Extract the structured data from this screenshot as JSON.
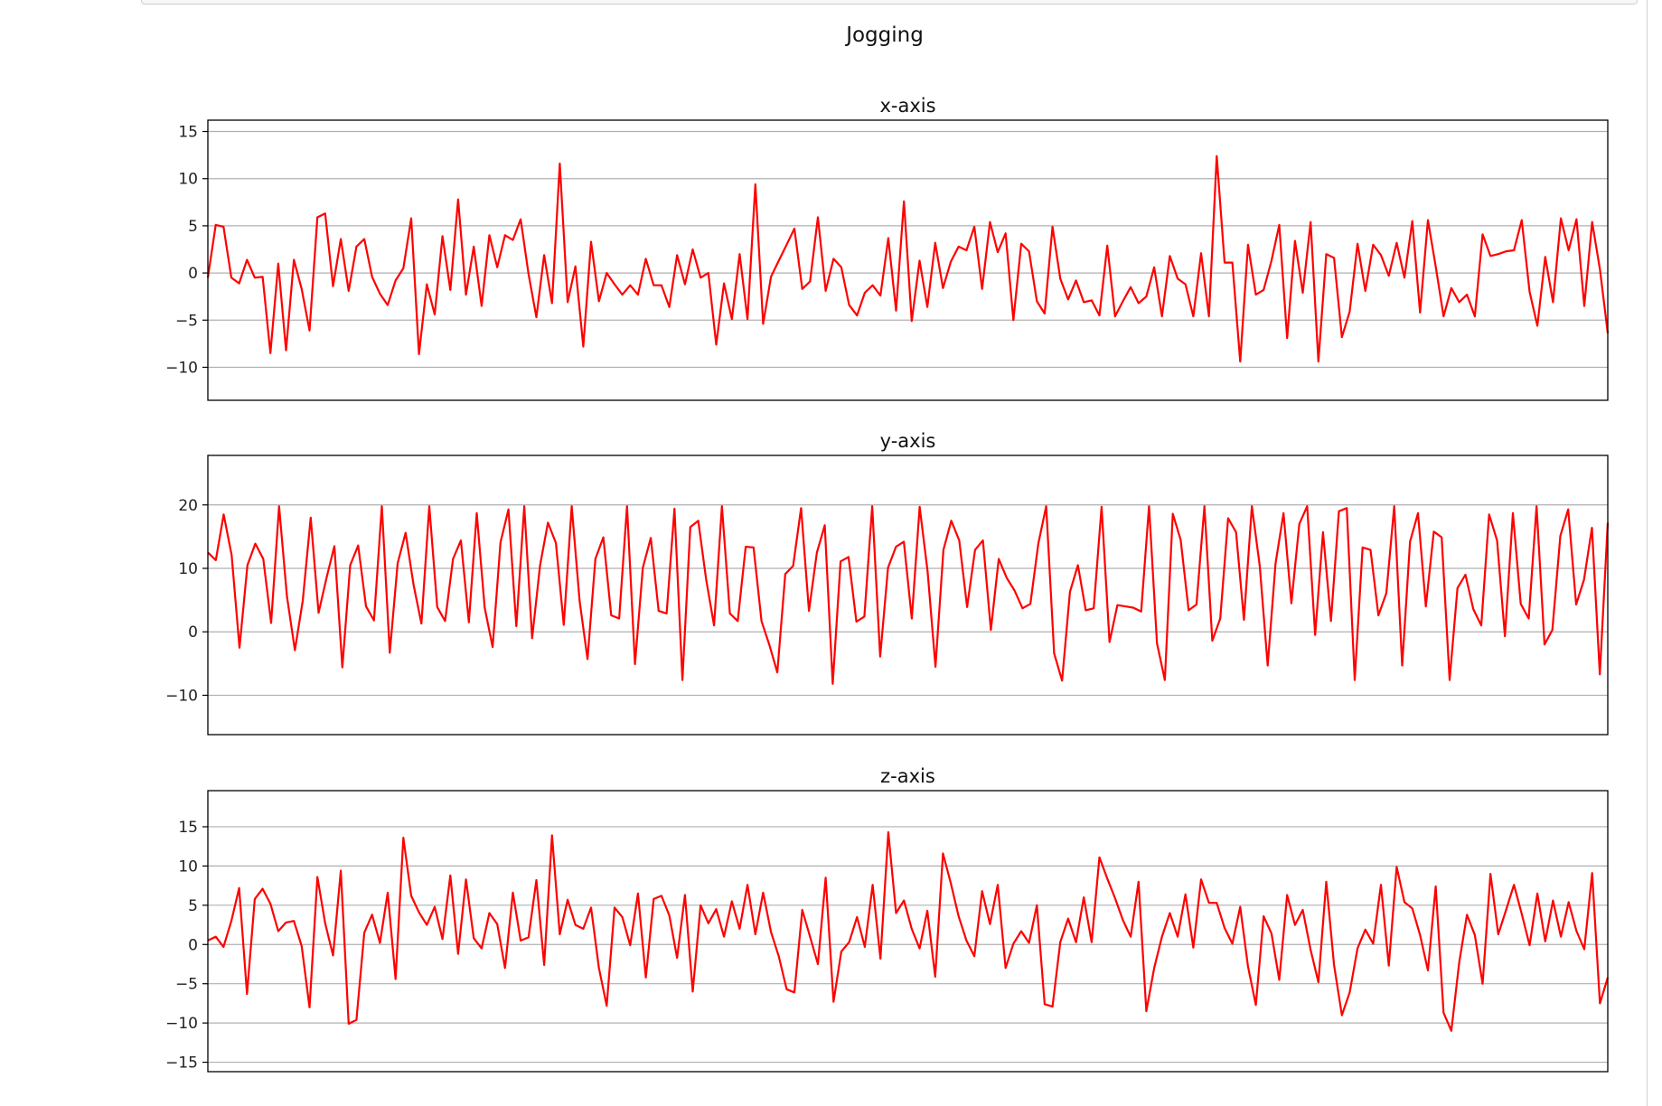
{
  "figure": {
    "title": "Jogging",
    "line_color": "#ff0000",
    "grid_color": "#b0b0b0"
  },
  "chart_data": [
    {
      "type": "line",
      "title": "x-axis",
      "ylim": [
        -13.5,
        16.2
      ],
      "yticks": [
        -10,
        -5,
        0,
        5,
        10,
        15
      ],
      "grid": "y",
      "color": "#ff0000",
      "values": [
        -0.5,
        5.1,
        4.9,
        -0.5,
        -1.1,
        1.4,
        -0.5,
        -0.4,
        -8.5,
        1.0,
        -8.2,
        1.4,
        -1.7,
        -6.1,
        5.9,
        6.3,
        -1.4,
        3.6,
        -1.9,
        2.8,
        3.6,
        -0.4,
        -2.2,
        -3.4,
        -0.8,
        0.5,
        5.8,
        -8.6,
        -1.2,
        -4.4,
        3.9,
        -1.8,
        7.8,
        -2.3,
        2.8,
        -3.5,
        4.0,
        0.6,
        4.0,
        3.5,
        5.7,
        -0.1,
        -4.7,
        1.9,
        -3.2,
        11.6,
        -3.1,
        0.7,
        -7.8,
        3.3,
        -3.0,
        0.0,
        -1.2,
        -2.3,
        -1.3,
        -2.3,
        1.5,
        -1.3,
        -1.3,
        -3.6,
        1.9,
        -1.2,
        2.5,
        -0.5,
        0.0,
        -7.6,
        -1.1,
        -4.9,
        2.0,
        -4.9,
        9.4,
        -5.4,
        -0.4,
        1.3,
        3.0,
        4.7,
        -1.7,
        -0.9,
        5.9,
        -1.9,
        1.5,
        0.6,
        -3.4,
        -4.5,
        -2.1,
        -1.3,
        -2.4,
        3.7,
        -4.0,
        7.6,
        -5.1,
        1.3,
        -3.6,
        3.2,
        -1.6,
        1.2,
        2.8,
        2.4,
        4.9,
        -1.7,
        5.4,
        2.2,
        4.2,
        -5.0,
        3.1,
        2.3,
        -3.0,
        -4.3,
        4.9,
        -0.6,
        -2.8,
        -0.8,
        -3.1,
        -2.9,
        -4.5,
        2.9,
        -4.6,
        -3.0,
        -1.5,
        -3.2,
        -2.5,
        0.6,
        -4.6,
        1.8,
        -0.6,
        -1.2,
        -4.6,
        2.1,
        -4.6,
        12.4,
        1.1,
        1.1,
        -9.4,
        3.0,
        -2.3,
        -1.8,
        1.3,
        5.1,
        -6.9,
        3.4,
        -2.1,
        5.4,
        -9.4,
        2.0,
        1.6,
        -6.8,
        -4.1,
        3.1,
        -1.9,
        3.0,
        1.9,
        -0.3,
        3.2,
        -0.5,
        5.5,
        -4.2,
        5.6,
        0.7,
        -4.6,
        -1.6,
        -3.1,
        -2.3,
        -4.6,
        4.1,
        1.8,
        2.0,
        2.3,
        2.4,
        5.6,
        -2.0,
        -5.6,
        1.7,
        -3.1,
        5.8,
        2.4,
        5.7,
        -3.5,
        5.4,
        0.4,
        -6.4
      ]
    },
    {
      "type": "line",
      "title": "y-axis",
      "ylim": [
        -16.2,
        27.8
      ],
      "yticks": [
        -10,
        0,
        10,
        20
      ],
      "grid": "y",
      "color": "#ff0000",
      "values": [
        12.5,
        11.3,
        18.5,
        12.1,
        -2.5,
        10.5,
        13.9,
        11.5,
        1.4,
        19.8,
        5.6,
        -2.9,
        4.9,
        18.0,
        3.0,
        8.5,
        13.5,
        -5.6,
        10.5,
        13.6,
        4.0,
        1.8,
        19.8,
        -3.3,
        10.8,
        15.6,
        7.5,
        1.3,
        19.8,
        3.9,
        1.7,
        11.5,
        14.4,
        1.5,
        18.7,
        3.8,
        -2.4,
        14.1,
        19.3,
        0.9,
        19.8,
        -1.0,
        10.5,
        17.2,
        14.0,
        1.1,
        19.8,
        4.9,
        -4.3,
        11.5,
        14.9,
        2.6,
        2.1,
        19.8,
        -5.1,
        10.1,
        14.8,
        3.3,
        2.9,
        19.4,
        -7.6,
        16.5,
        17.5,
        8.3,
        1.0,
        19.8,
        2.9,
        1.7,
        13.4,
        13.3,
        1.7,
        -2.1,
        -6.4,
        9.1,
        10.4,
        19.5,
        3.3,
        12.5,
        16.8,
        -8.2,
        11.1,
        11.8,
        1.6,
        2.4,
        19.8,
        -3.9,
        10.1,
        13.4,
        14.2,
        2.1,
        19.7,
        9.5,
        -5.5,
        12.9,
        17.5,
        14.4,
        3.9,
        12.9,
        14.4,
        0.3,
        11.5,
        8.5,
        6.5,
        3.7,
        4.4,
        13.9,
        19.8,
        -3.4,
        -7.7,
        6.3,
        10.5,
        3.4,
        3.7,
        19.7,
        -1.6,
        4.2,
        4.0,
        3.8,
        3.2,
        19.8,
        -1.8,
        -7.6,
        18.6,
        14.5,
        3.4,
        4.3,
        19.8,
        -1.4,
        2.1,
        17.9,
        15.7,
        1.9,
        19.8,
        10.4,
        -5.3,
        10.8,
        18.7,
        4.5,
        17.0,
        19.8,
        -0.5,
        15.7,
        1.7,
        19.0,
        19.5,
        -7.6,
        13.3,
        12.9,
        2.6,
        6.1,
        19.8,
        -5.3,
        14.2,
        18.7,
        4.0,
        15.8,
        14.9,
        -7.6,
        6.9,
        9.0,
        3.6,
        1.0,
        18.5,
        14.4,
        -0.7,
        18.7,
        4.4,
        2.1,
        19.8,
        -2.0,
        0.3,
        15.1,
        19.3,
        4.3,
        8.2,
        16.4,
        -6.7,
        17.2
      ]
    },
    {
      "type": "line",
      "title": "z-axis",
      "ylim": [
        -16.2,
        19.6
      ],
      "yticks": [
        -15,
        -10,
        -5,
        0,
        5,
        10,
        15
      ],
      "grid": "y",
      "color": "#ff0000",
      "values": [
        0.5,
        1.0,
        -0.3,
        3.0,
        7.2,
        -6.3,
        5.8,
        7.1,
        5.2,
        1.7,
        2.8,
        3.0,
        -0.2,
        -8.0,
        8.6,
        2.7,
        -1.4,
        9.4,
        -10.1,
        -9.6,
        1.5,
        3.8,
        0.2,
        6.6,
        -4.4,
        13.6,
        6.2,
        4.1,
        2.5,
        4.8,
        0.7,
        8.8,
        -1.2,
        8.3,
        0.8,
        -0.5,
        4.0,
        2.6,
        -3.0,
        6.6,
        0.5,
        0.9,
        8.2,
        -2.6,
        13.9,
        1.3,
        5.7,
        2.5,
        2.0,
        4.7,
        -3.0,
        -7.8,
        4.7,
        3.5,
        -0.1,
        6.5,
        -4.2,
        5.8,
        6.2,
        3.7,
        -1.7,
        6.3,
        -6.0,
        5.0,
        2.7,
        4.5,
        1.0,
        5.5,
        2.0,
        7.6,
        1.3,
        6.6,
        1.6,
        -1.5,
        -5.7,
        -6.1,
        4.4,
        1.0,
        -2.5,
        8.5,
        -7.3,
        -0.9,
        0.3,
        3.5,
        -0.3,
        7.6,
        -1.8,
        14.3,
        4.0,
        5.6,
        2.0,
        -0.5,
        4.3,
        -4.1,
        11.6,
        7.8,
        3.6,
        0.5,
        -1.5,
        6.8,
        2.6,
        7.6,
        -3.0,
        0.1,
        1.7,
        0.2,
        5.0,
        -7.6,
        -7.9,
        0.3,
        3.3,
        0.3,
        6.0,
        0.3,
        11.1,
        8.4,
        5.9,
        3.1,
        1.0,
        8.0,
        -8.5,
        -3.0,
        1.0,
        4.0,
        1.0,
        6.4,
        -0.4,
        8.3,
        5.3,
        5.3,
        2.1,
        0.1,
        4.8,
        -2.8,
        -7.7,
        3.6,
        1.4,
        -4.5,
        6.3,
        2.5,
        4.4,
        -0.7,
        -4.8,
        8.0,
        -2.6,
        -9.0,
        -6.1,
        -0.5,
        1.9,
        0.1,
        7.6,
        -2.7,
        9.9,
        5.4,
        4.6,
        1.2,
        -3.3,
        7.4,
        -8.7,
        -11.0,
        -2.3,
        3.8,
        1.2,
        -5.0,
        9.0,
        1.3,
        4.4,
        7.6,
        3.9,
        -0.1,
        6.5,
        0.4,
        5.6,
        1.0,
        5.4,
        1.7,
        -0.6,
        9.1,
        -7.5,
        -4.2
      ]
    }
  ]
}
